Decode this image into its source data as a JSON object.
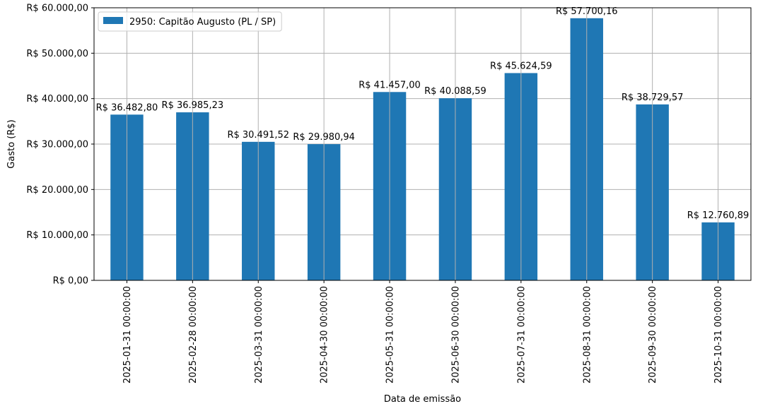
{
  "chart_data": {
    "type": "bar",
    "categories": [
      "2025-01-31 00:00:00",
      "2025-02-28 00:00:00",
      "2025-03-31 00:00:00",
      "2025-04-30 00:00:00",
      "2025-05-31 00:00:00",
      "2025-06-30 00:00:00",
      "2025-07-31 00:00:00",
      "2025-08-31 00:00:00",
      "2025-09-30 00:00:00",
      "2025-10-31 00:00:00"
    ],
    "series": [
      {
        "name": "2950: Capitão Augusto (PL / SP)",
        "color": "#1f77b4",
        "values": [
          36482.8,
          36985.23,
          30491.52,
          29980.94,
          41457.0,
          40088.59,
          45624.59,
          57700.16,
          38729.57,
          12760.89
        ],
        "data_labels": [
          "R$ 36.482,80",
          "R$ 36.985,23",
          "R$ 30.491,52",
          "R$ 29.980,94",
          "R$ 41.457,00",
          "R$ 40.088,59",
          "R$ 45.624,59",
          "R$ 57.700,16",
          "R$ 38.729,57",
          "R$ 12.760,89"
        ]
      }
    ],
    "xlabel": "Data de emissão",
    "ylabel": "Gasto (R$)",
    "ylim": [
      0,
      60000
    ],
    "yticks": [
      0,
      10000,
      20000,
      30000,
      40000,
      50000,
      60000
    ],
    "ytick_labels": [
      "R$ 0,00",
      "R$ 10.000,00",
      "R$ 20.000,00",
      "R$ 30.000,00",
      "R$ 40.000,00",
      "R$ 50.000,00",
      "R$ 60.000,00"
    ],
    "grid": true,
    "legend_position": "top-left"
  }
}
